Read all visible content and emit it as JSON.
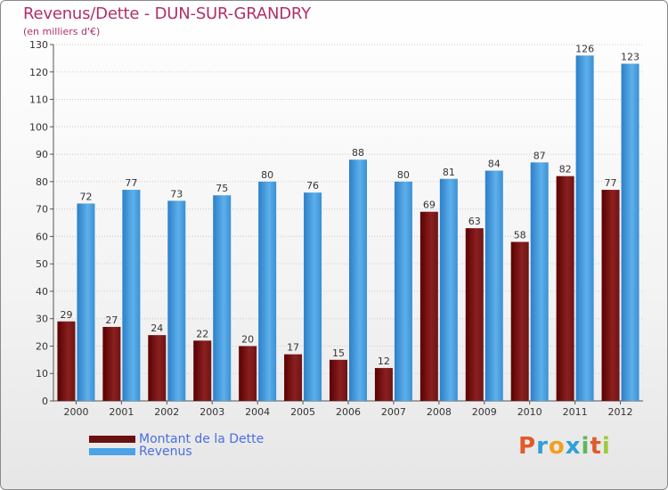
{
  "header": {
    "title": "Revenus/Dette - DUN-SUR-GRANDRY",
    "subtitle": "(en milliers d'€)"
  },
  "legend": {
    "items": [
      {
        "label": "Montant de la Dette",
        "color": "#6b1010"
      },
      {
        "label": "Revenus",
        "color": "#4aa3e6"
      }
    ]
  },
  "logo": {
    "text": "Proxiti",
    "letters": [
      "P",
      "r",
      "o",
      "x",
      "i",
      "t",
      "i"
    ],
    "colors": [
      "#e05a2a",
      "#2f9fd8",
      "#f0a020",
      "#2f9fd8",
      "#5cb85c",
      "#e05a2a",
      "#9ccc3c"
    ]
  },
  "colors": {
    "debt": "#7a1a1a",
    "revenue": "#4aa3e6",
    "grid": "#cccccc",
    "axis_text": "#333333"
  },
  "chart_data": {
    "type": "bar",
    "title": "Revenus/Dette - DUN-SUR-GRANDRY",
    "ylabel": "(en milliers d'€)",
    "xlabel": "",
    "ylim": [
      0,
      130
    ],
    "yticks": [
      0,
      10,
      20,
      30,
      40,
      50,
      60,
      70,
      80,
      90,
      100,
      110,
      120,
      130
    ],
    "categories": [
      "2000",
      "2001",
      "2002",
      "2003",
      "2004",
      "2005",
      "2006",
      "2007",
      "2008",
      "2009",
      "2010",
      "2011",
      "2012"
    ],
    "series": [
      {
        "name": "Montant de la Dette",
        "values": [
          29,
          27,
          24,
          22,
          20,
          17,
          15,
          12,
          69,
          63,
          58,
          82,
          77
        ]
      },
      {
        "name": "Revenus",
        "values": [
          72,
          77,
          73,
          75,
          80,
          76,
          88,
          80,
          81,
          84,
          87,
          126,
          123
        ]
      }
    ],
    "legend": "bottom-left",
    "grid": true
  }
}
